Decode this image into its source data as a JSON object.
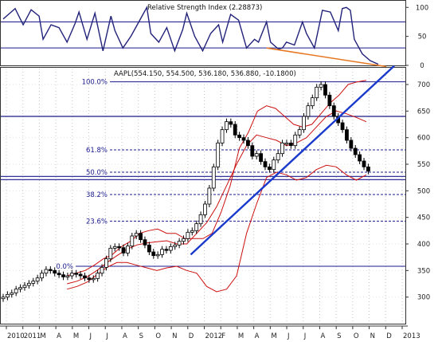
{
  "chart_data": [
    {
      "type": "line",
      "title": "Relative Strength Index (2.28873)",
      "ylim": [
        0,
        110
      ],
      "y_ticks": [
        "100",
        "50",
        "0"
      ],
      "y_tick_values": [
        100,
        50,
        0
      ],
      "reference_lines": [
        75,
        30
      ],
      "series": [
        {
          "color": "#22227a",
          "x": [
            0,
            0.02,
            0.03,
            0.05,
            0.07,
            0.09,
            0.1,
            0.12,
            0.14,
            0.16,
            0.18,
            0.19,
            0.21,
            0.23,
            0.25,
            0.27,
            0.28,
            0.3,
            0.32,
            0.34,
            0.36,
            0.37,
            0.39,
            0.41,
            0.43,
            0.45,
            0.46,
            0.48,
            0.5,
            0.52,
            0.54,
            0.55,
            0.57,
            0.59,
            0.61,
            0.63,
            0.64,
            0.66,
            0.67,
            0.69,
            0.7,
            0.71,
            0.73,
            0.75,
            0.76,
            0.78,
            0.8,
            0.82,
            0.84,
            0.85,
            0.86,
            0.87,
            0.88,
            0.9,
            0.92,
            0.94
          ],
          "values": [
            80,
            92,
            98,
            70,
            96,
            85,
            45,
            70,
            65,
            40,
            72,
            92,
            45,
            90,
            25,
            85,
            60,
            30,
            50,
            75,
            100,
            55,
            40,
            65,
            25,
            62,
            90,
            50,
            25,
            55,
            70,
            40,
            88,
            78,
            30,
            45,
            40,
            75,
            40,
            28,
            30,
            40,
            35,
            75,
            55,
            30,
            95,
            92,
            60,
            98,
            100,
            95,
            45,
            20,
            8,
            2
          ]
        },
        {
          "color": "#e87722",
          "x": [
            0.66,
            0.96
          ],
          "values": [
            30,
            -2
          ]
        }
      ]
    },
    {
      "type": "candlestick",
      "title": "AAPL(554.150, 554.500, 536.180, 536.880, -10.1800)",
      "ylim": [
        250,
        730
      ],
      "y_ticks": [
        "700",
        "650",
        "600",
        "550",
        "500",
        "450",
        "400",
        "350",
        "300"
      ],
      "y_tick_values": [
        700,
        650,
        600,
        550,
        500,
        450,
        400,
        350,
        300
      ],
      "x_tick_labels": [
        "2010",
        "2011",
        "M",
        "A",
        "M",
        "J",
        "J",
        "A",
        "S",
        "O",
        "N",
        "D",
        "2012",
        "F",
        "M",
        "A",
        "M",
        "J",
        "J",
        "A",
        "S",
        "O",
        "N",
        "D",
        "2013"
      ],
      "fibonacci_levels": [
        {
          "label": "100.0%",
          "value": 705
        },
        {
          "label": "61.8%",
          "value": 577
        },
        {
          "label": "50.0%",
          "value": 535
        },
        {
          "label": "38.2%",
          "value": 493
        },
        {
          "label": "23.6%",
          "value": 443
        },
        {
          "label": "0.0%",
          "value": 358
        }
      ],
      "horizontal_lines": [
        640,
        527,
        521
      ],
      "trendline": {
        "color": "#1a3acc",
        "from": [
          0.47,
          380
        ],
        "to": [
          0.98,
          735
        ]
      },
      "close": [
        300,
        305,
        308,
        315,
        318,
        322,
        326,
        330,
        336,
        345,
        352,
        350,
        345,
        342,
        338,
        340,
        345,
        343,
        340,
        336,
        333,
        335,
        345,
        356,
        372,
        392,
        395,
        393,
        383,
        396,
        415,
        420,
        408,
        398,
        385,
        378,
        380,
        390,
        388,
        395,
        398,
        405,
        410,
        422,
        425,
        438,
        455,
        475,
        505,
        545,
        590,
        615,
        630,
        625,
        605,
        600,
        595,
        585,
        565,
        570,
        555,
        545,
        540,
        558,
        570,
        590,
        590,
        585,
        605,
        615,
        640,
        660,
        675,
        695,
        700,
        680,
        660,
        640,
        628,
        615,
        595,
        580,
        568,
        556,
        545,
        537
      ],
      "bollinger_upper": [
        340,
        345,
        350,
        360,
        372,
        380,
        395,
        405,
        420,
        425,
        428,
        420,
        420,
        410,
        410,
        410,
        420,
        460,
        510,
        580,
        610,
        650,
        660,
        655,
        640,
        625,
        620,
        625,
        645,
        665,
        680,
        700,
        705,
        708
      ],
      "bollinger_middle": [
        325,
        330,
        338,
        350,
        365,
        378,
        390,
        398,
        402,
        404,
        406,
        400,
        400,
        420,
        440,
        470,
        510,
        550,
        585,
        605,
        600,
        595,
        585,
        590,
        600,
        620,
        640,
        650,
        645,
        638,
        630
      ],
      "bollinger_lower": [
        315,
        320,
        328,
        342,
        356,
        365,
        365,
        360,
        355,
        350,
        355,
        358,
        350,
        345,
        320,
        310,
        315,
        340,
        420,
        475,
        525,
        535,
        530,
        520,
        525,
        540,
        548,
        545,
        530,
        520,
        530
      ]
    }
  ]
}
